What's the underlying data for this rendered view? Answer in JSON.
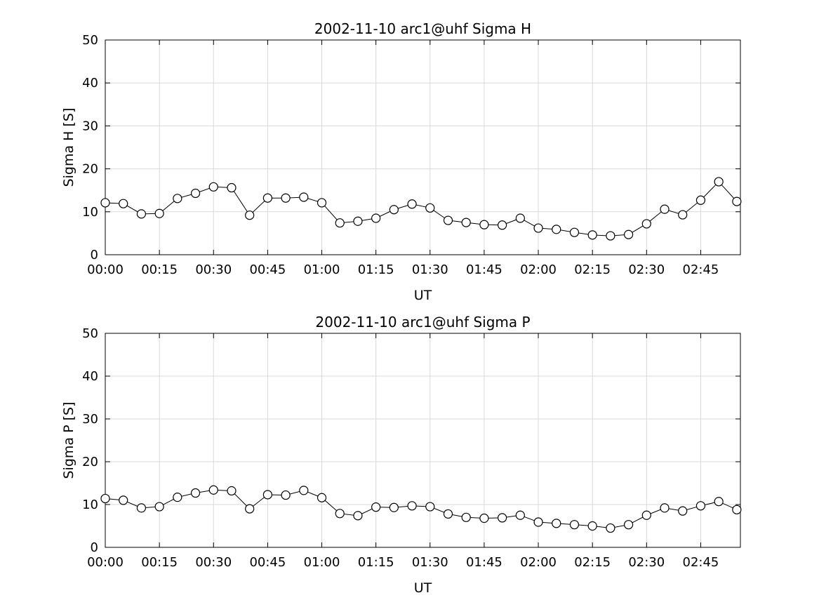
{
  "figure": {
    "background": "#ffffff",
    "grid_color": "#d9d9d9",
    "axis_color": "#000000",
    "line_color": "#000000",
    "marker_fill": "#ffffff"
  },
  "chart_data": [
    {
      "type": "line",
      "title": "2002-11-10  arc1@uhf Sigma H",
      "xlabel": "UT",
      "ylabel": "Sigma H [S]",
      "ylim": [
        0,
        50
      ],
      "yticks": [
        0,
        10,
        20,
        30,
        40,
        50
      ],
      "xlim_minutes": [
        0,
        176
      ],
      "xtick_minutes": [
        0,
        15,
        30,
        45,
        60,
        75,
        90,
        105,
        120,
        135,
        150,
        165
      ],
      "xtick_labels": [
        "00:00",
        "00:15",
        "00:30",
        "00:45",
        "01:00",
        "01:15",
        "01:30",
        "01:45",
        "02:00",
        "02:15",
        "02:30",
        "02:45"
      ],
      "grid": true,
      "legend": "none",
      "marker": "open-circle",
      "x_labels": [
        "00:00",
        "00:05",
        "00:10",
        "00:15",
        "00:20",
        "00:25",
        "00:30",
        "00:35",
        "00:40",
        "00:45",
        "00:50",
        "00:55",
        "01:00",
        "01:05",
        "01:10",
        "01:15",
        "01:20",
        "01:25",
        "01:30",
        "01:35",
        "01:40",
        "01:45",
        "01:50",
        "01:55",
        "02:00",
        "02:05",
        "02:10",
        "02:15",
        "02:20",
        "02:25",
        "02:30",
        "02:35",
        "02:40",
        "02:45",
        "02:50",
        "02:55"
      ],
      "x_minutes": [
        0,
        5,
        10,
        15,
        20,
        25,
        30,
        35,
        40,
        45,
        50,
        55,
        60,
        65,
        70,
        75,
        80,
        85,
        90,
        95,
        100,
        105,
        110,
        115,
        120,
        125,
        130,
        135,
        140,
        145,
        150,
        155,
        160,
        165,
        170,
        175
      ],
      "values": [
        12.1,
        11.9,
        9.5,
        9.6,
        13.1,
        14.3,
        15.8,
        15.6,
        9.2,
        13.2,
        13.2,
        13.4,
        12.1,
        7.4,
        7.8,
        8.5,
        10.5,
        11.8,
        10.9,
        8.0,
        7.5,
        7.0,
        6.9,
        8.5,
        6.2,
        5.9,
        5.2,
        4.6,
        4.4,
        4.7,
        7.2,
        10.6,
        9.3,
        12.7,
        17.0,
        12.4
      ]
    },
    {
      "type": "line",
      "title": "2002-11-10  arc1@uhf Sigma P",
      "xlabel": "UT",
      "ylabel": "Sigma P [S]",
      "ylim": [
        0,
        50
      ],
      "yticks": [
        0,
        10,
        20,
        30,
        40,
        50
      ],
      "xlim_minutes": [
        0,
        176
      ],
      "xtick_minutes": [
        0,
        15,
        30,
        45,
        60,
        75,
        90,
        105,
        120,
        135,
        150,
        165
      ],
      "xtick_labels": [
        "00:00",
        "00:15",
        "00:30",
        "00:45",
        "01:00",
        "01:15",
        "01:30",
        "01:45",
        "02:00",
        "02:15",
        "02:30",
        "02:45"
      ],
      "grid": true,
      "legend": "none",
      "marker": "open-circle",
      "x_labels": [
        "00:00",
        "00:05",
        "00:10",
        "00:15",
        "00:20",
        "00:25",
        "00:30",
        "00:35",
        "00:40",
        "00:45",
        "00:50",
        "00:55",
        "01:00",
        "01:05",
        "01:10",
        "01:15",
        "01:20",
        "01:25",
        "01:30",
        "01:35",
        "01:40",
        "01:45",
        "01:50",
        "01:55",
        "02:00",
        "02:05",
        "02:10",
        "02:15",
        "02:20",
        "02:25",
        "02:30",
        "02:35",
        "02:40",
        "02:45",
        "02:50",
        "02:55"
      ],
      "x_minutes": [
        0,
        5,
        10,
        15,
        20,
        25,
        30,
        35,
        40,
        45,
        50,
        55,
        60,
        65,
        70,
        75,
        80,
        85,
        90,
        95,
        100,
        105,
        110,
        115,
        120,
        125,
        130,
        135,
        140,
        145,
        150,
        155,
        160,
        165,
        170,
        175
      ],
      "values": [
        11.4,
        11.0,
        9.2,
        9.5,
        11.7,
        12.7,
        13.4,
        13.2,
        9.0,
        12.3,
        12.2,
        13.3,
        11.6,
        7.9,
        7.4,
        9.4,
        9.3,
        9.7,
        9.5,
        7.8,
        7.0,
        6.8,
        6.9,
        7.5,
        5.9,
        5.6,
        5.3,
        5.0,
        4.5,
        5.3,
        7.5,
        9.2,
        8.5,
        9.7,
        10.7,
        8.8
      ]
    }
  ]
}
